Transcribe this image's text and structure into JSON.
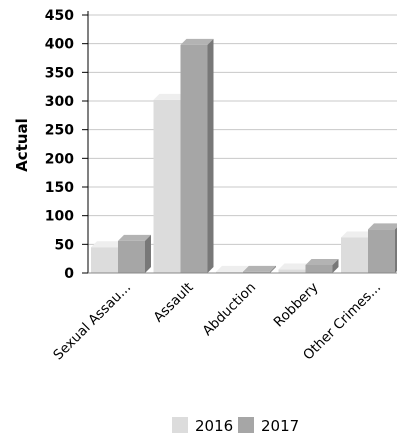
{
  "chart_data": {
    "type": "bar",
    "title": "",
    "xlabel": "",
    "ylabel": "Actual",
    "ylim": [
      0,
      450
    ],
    "yticks": [
      0,
      50,
      100,
      150,
      200,
      250,
      300,
      350,
      400,
      450
    ],
    "categories": [
      "Sexual Assau...",
      "Assault",
      "Abduction",
      "Robbery",
      "Other Crimes..."
    ],
    "series": [
      {
        "name": "2016",
        "values": [
          45,
          302,
          2,
          6,
          62
        ],
        "color": "#dcdcdc"
      },
      {
        "name": "2017",
        "values": [
          56,
          398,
          2,
          14,
          76
        ],
        "color": "#a6a6a6"
      }
    ],
    "grid": true,
    "bar_style": "3d",
    "legend": {
      "position": "bottom"
    }
  }
}
